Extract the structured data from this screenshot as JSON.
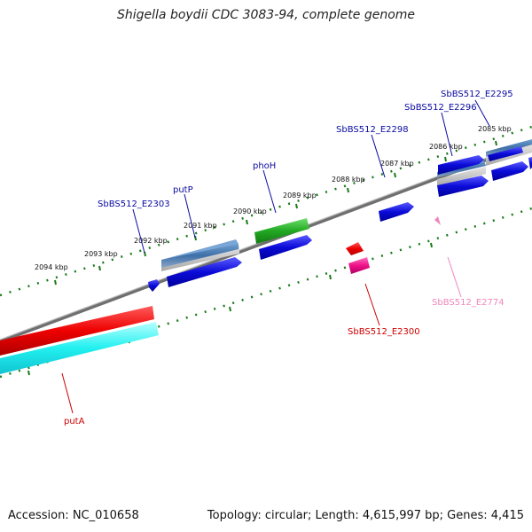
{
  "title": "Shigella boydii CDC 3083-94, complete genome",
  "footer": {
    "accession": "Accession: NC_010658",
    "summary": "Topology: circular; Length: 4,615,997 bp; Genes: 4,415"
  },
  "colors": {
    "backbone": "#777777",
    "tick": "#1a7a1a",
    "forward_label": "#0a0aa0",
    "reverse_label": "#cc0000",
    "pink_label": "#ee88bb"
  },
  "ticks": [
    {
      "label": "2085 kbp"
    },
    {
      "label": "2086 kbp"
    },
    {
      "label": "2087 kbp"
    },
    {
      "label": "2088 kbp"
    },
    {
      "label": "2089 kbp"
    },
    {
      "label": "2090 kbp"
    },
    {
      "label": "2091 kbp"
    },
    {
      "label": "2092 kbp"
    },
    {
      "label": "2093 kbp"
    },
    {
      "label": "2094 kbp"
    }
  ],
  "genes": [
    {
      "name": "SbBS512_E2295",
      "strand": "forward"
    },
    {
      "name": "SbBS512_E2296",
      "strand": "forward"
    },
    {
      "name": "SbBS512_E2298",
      "strand": "forward"
    },
    {
      "name": "phoH",
      "strand": "forward"
    },
    {
      "name": "putP",
      "strand": "forward"
    },
    {
      "name": "SbBS512_E2303",
      "strand": "forward"
    },
    {
      "name": "SbBS512_E2300",
      "strand": "reverse"
    },
    {
      "name": "SbBS512_E2774",
      "strand": "reverse"
    },
    {
      "name": "putA",
      "strand": "reverse"
    }
  ]
}
